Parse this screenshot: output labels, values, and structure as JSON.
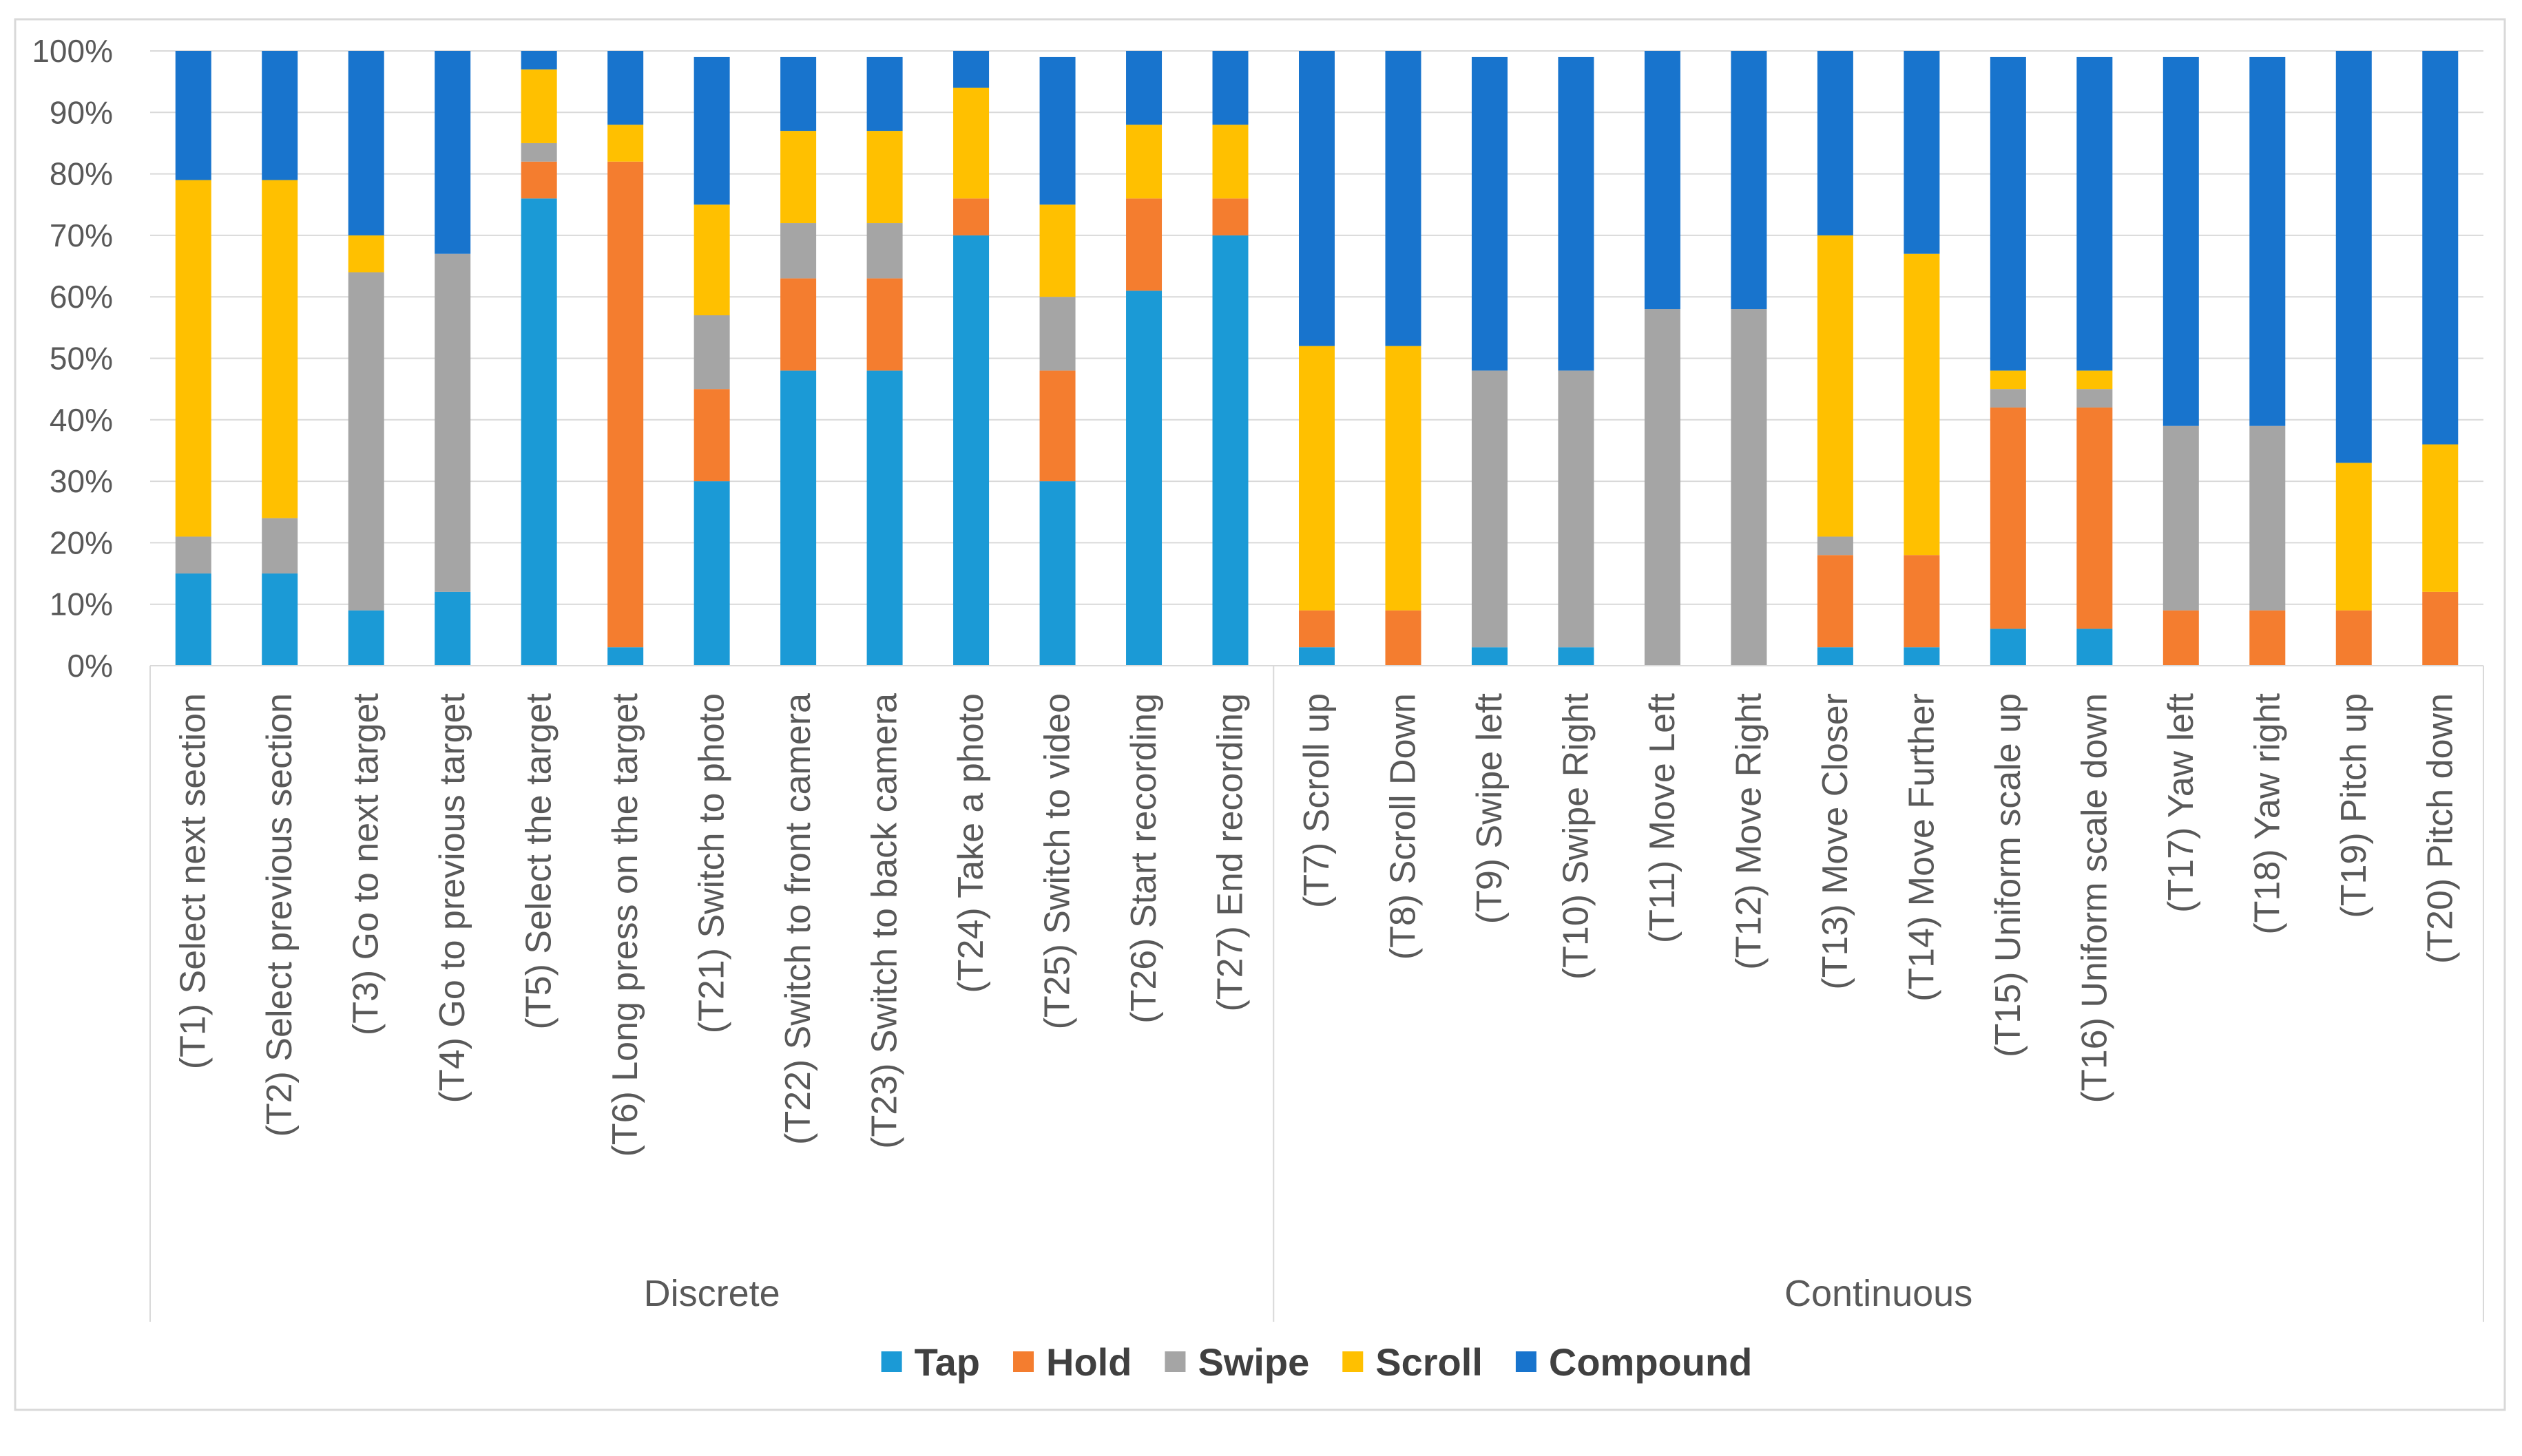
{
  "chart_data": {
    "type": "bar",
    "stacked": true,
    "percent": true,
    "title": "",
    "xlabel": "",
    "ylabel": "",
    "ylim": [
      0,
      100
    ],
    "yticks": [
      "0%",
      "10%",
      "20%",
      "30%",
      "40%",
      "50%",
      "60%",
      "70%",
      "80%",
      "90%",
      "100%"
    ],
    "legend_position": "bottom",
    "groups": [
      {
        "label": "Discrete",
        "count": 13
      },
      {
        "label": "Continuous",
        "count": 14
      }
    ],
    "categories": [
      "(T1) Select next section",
      "(T2) Select previous section",
      "(T3) Go to next target",
      "(T4) Go to previous target",
      "(T5) Select the target",
      "(T6) Long press on the target",
      "(T21) Switch to photo",
      "(T22) Switch to front camera",
      "(T23) Switch to back camera",
      "(T24) Take a photo",
      "(T25) Switch to video",
      "(T26) Start recording",
      "(T27) End recording",
      "(T7) Scroll up",
      "(T8) Scroll Down",
      "(T9) Swipe left",
      "(T10) Swipe Right",
      "(T11) Move Left",
      "(T12) Move Right",
      "(T13) Move Closer",
      "(T14) Move Further",
      "(T15) Uniform scale up",
      "(T16) Uniform scale down",
      "(T17) Yaw left",
      "(T18) Yaw right",
      "(T19) Pitch up",
      "(T20) Pitch down"
    ],
    "series": [
      {
        "name": "Tap",
        "color": "#1B9AD6",
        "values": [
          15,
          15,
          9,
          12,
          76,
          3,
          30,
          48,
          48,
          70,
          30,
          61,
          70,
          3,
          0,
          3,
          3,
          0,
          0,
          3,
          3,
          6,
          6,
          0,
          0,
          0,
          0
        ]
      },
      {
        "name": "Hold",
        "color": "#F47D2F",
        "values": [
          0,
          0,
          0,
          0,
          6,
          79,
          15,
          15,
          15,
          6,
          18,
          15,
          6,
          6,
          9,
          0,
          0,
          0,
          0,
          15,
          15,
          36,
          36,
          9,
          9,
          9,
          12
        ]
      },
      {
        "name": "Swipe",
        "color": "#A5A5A5",
        "values": [
          6,
          9,
          55,
          55,
          3,
          0,
          12,
          9,
          9,
          0,
          12,
          0,
          0,
          0,
          0,
          45,
          45,
          58,
          58,
          3,
          0,
          3,
          3,
          30,
          30,
          0,
          0
        ]
      },
      {
        "name": "Scroll",
        "color": "#FFC000",
        "values": [
          58,
          55,
          6,
          0,
          12,
          6,
          18,
          15,
          15,
          18,
          15,
          12,
          12,
          43,
          43,
          0,
          0,
          0,
          0,
          49,
          49,
          3,
          3,
          0,
          0,
          24,
          24
        ]
      },
      {
        "name": "Compound",
        "color": "#1874CD",
        "values": [
          21,
          21,
          30,
          33,
          3,
          12,
          24,
          12,
          12,
          6,
          24,
          12,
          12,
          48,
          48,
          51,
          51,
          42,
          42,
          30,
          33,
          51,
          51,
          60,
          60,
          67,
          64
        ]
      }
    ]
  }
}
